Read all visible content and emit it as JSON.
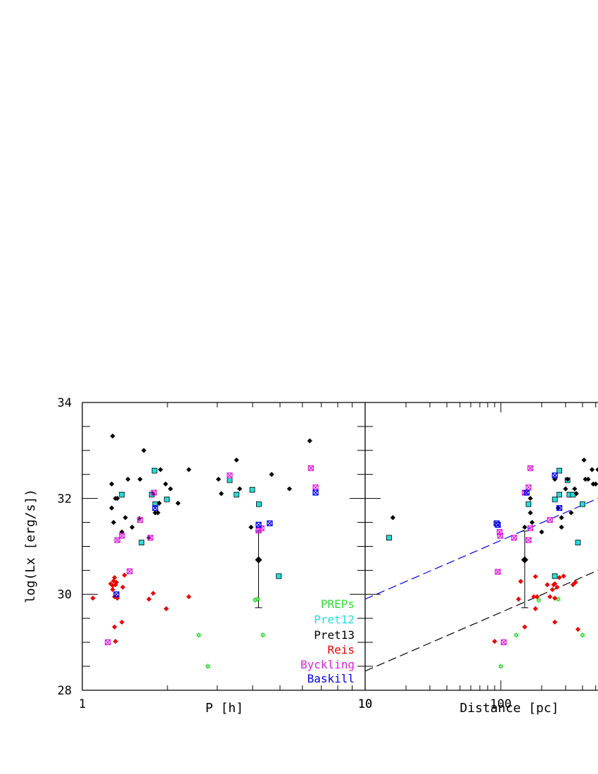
{
  "chart_data": [
    {
      "type": "scatter",
      "panel": "left",
      "xlabel": "P [h]",
      "ylabel": "log(Lx [erg/s])",
      "xscale": "log",
      "xlim": [
        1,
        10
      ],
      "ylim": [
        28,
        34
      ],
      "x_tick_labels": [
        "1",
        "10"
      ],
      "y_tick_labels": [
        "28",
        "30",
        "32",
        "34"
      ],
      "grid": false,
      "legend_position": "bottom-right",
      "series": [
        {
          "name": "PREPs",
          "color": "#33dd33",
          "marker": "star",
          "points": [
            [
              2.58,
              29.15
            ],
            [
              2.78,
              28.5
            ],
            [
              4.08,
              29.88
            ],
            [
              4.17,
              29.9
            ],
            [
              4.35,
              29.15
            ]
          ]
        },
        {
          "name": "Pret12",
          "color": "#22dddd",
          "marker": "square",
          "points": [
            [
              1.38,
              32.08
            ],
            [
              1.62,
              31.08
            ],
            [
              1.76,
              32.08
            ],
            [
              1.81,
              31.88
            ],
            [
              1.8,
              32.58
            ],
            [
              1.99,
              31.98
            ],
            [
              3.32,
              32.38
            ],
            [
              3.51,
              32.08
            ],
            [
              3.99,
              32.18
            ],
            [
              4.21,
              31.88
            ],
            [
              4.95,
              30.38
            ]
          ]
        },
        {
          "name": "Pret13",
          "color": "#000000",
          "marker": "diamond",
          "points": [
            [
              1.28,
              33.3
            ],
            [
              1.27,
              32.3
            ],
            [
              1.27,
              31.8
            ],
            [
              1.29,
              31.5
            ],
            [
              1.31,
              32.0
            ],
            [
              1.33,
              32.0
            ],
            [
              1.38,
              31.3
            ],
            [
              1.42,
              31.6
            ],
            [
              1.45,
              32.4
            ],
            [
              1.5,
              31.4
            ],
            [
              1.59,
              31.58
            ],
            [
              1.6,
              32.4
            ],
            [
              1.65,
              33.0
            ],
            [
              1.72,
              31.18
            ],
            [
              1.78,
              32.1
            ],
            [
              1.81,
              31.7
            ],
            [
              1.85,
              31.7
            ],
            [
              1.87,
              31.9
            ],
            [
              1.89,
              32.6
            ],
            [
              1.97,
              32.3
            ],
            [
              2.05,
              32.2
            ],
            [
              2.18,
              31.9
            ],
            [
              2.38,
              32.6
            ],
            [
              3.03,
              32.4
            ],
            [
              3.1,
              32.1
            ],
            [
              3.51,
              32.8
            ],
            [
              3.6,
              32.2
            ],
            [
              3.95,
              31.4
            ],
            [
              4.67,
              32.5
            ],
            [
              5.4,
              32.2
            ],
            [
              6.37,
              33.2
            ]
          ]
        },
        {
          "name": "Reis",
          "color": "#ee0000",
          "marker": "diamond",
          "points": [
            [
              1.09,
              29.92
            ],
            [
              1.26,
              30.22
            ],
            [
              1.28,
              30.18
            ],
            [
              1.29,
              30.28
            ],
            [
              1.3,
              30.35
            ],
            [
              1.31,
              30.2
            ],
            [
              1.32,
              30.25
            ],
            [
              1.28,
              30.1
            ],
            [
              1.3,
              29.95
            ],
            [
              1.33,
              29.92
            ],
            [
              1.3,
              29.32
            ],
            [
              1.31,
              29.02
            ],
            [
              1.39,
              30.15
            ],
            [
              1.41,
              30.4
            ],
            [
              1.38,
              29.42
            ],
            [
              1.72,
              29.9
            ],
            [
              1.78,
              30.02
            ],
            [
              1.98,
              29.7
            ],
            [
              2.38,
              29.95
            ]
          ]
        },
        {
          "name": "Byckling",
          "color": "#dd22dd",
          "marker": "square-x",
          "points": [
            [
              1.23,
              29.0
            ],
            [
              1.33,
              31.13
            ],
            [
              1.38,
              31.22
            ],
            [
              1.47,
              30.48
            ],
            [
              1.6,
              31.55
            ],
            [
              1.74,
              31.18
            ],
            [
              1.79,
              32.12
            ],
            [
              3.32,
              32.48
            ],
            [
              4.2,
              31.33
            ],
            [
              4.3,
              31.38
            ],
            [
              6.43,
              32.63
            ],
            [
              6.68,
              32.23
            ]
          ]
        },
        {
          "name": "Baskill",
          "color": "#0000ee",
          "marker": "square-x",
          "points": [
            [
              1.32,
              30.0
            ],
            [
              1.81,
              31.8
            ],
            [
              4.2,
              31.45
            ],
            [
              4.6,
              31.48
            ],
            [
              6.68,
              32.12
            ]
          ]
        }
      ],
      "error_bar": {
        "x": 4.2,
        "y": 30.72,
        "ylow": 29.72,
        "yhigh": 31.32
      }
    },
    {
      "type": "scatter",
      "panel": "right",
      "xlabel": "Distance [pc]",
      "xscale": "log",
      "xlim": [
        10,
        520
      ],
      "ylim": [
        28,
        34
      ],
      "x_tick_labels": [
        "10",
        "100"
      ],
      "grid": false,
      "series": [
        {
          "name": "PREPs",
          "color": "#33dd33",
          "marker": "star",
          "points": [
            [
              100,
              28.5
            ],
            [
              130,
              29.15
            ],
            [
              190,
              29.88
            ],
            [
              265,
              29.9
            ],
            [
              400,
              29.15
            ]
          ]
        },
        {
          "name": "Pret12",
          "color": "#22dddd",
          "marker": "square",
          "points": [
            [
              15,
              31.18
            ],
            [
              160,
              31.88
            ],
            [
              250,
              31.98
            ],
            [
              250,
              30.38
            ],
            [
              270,
              32.08
            ],
            [
              270,
              32.58
            ],
            [
              310,
              32.38
            ],
            [
              320,
              32.08
            ],
            [
              340,
              32.08
            ],
            [
              370,
              31.08
            ],
            [
              400,
              31.88
            ]
          ]
        },
        {
          "name": "Pret13",
          "color": "#000000",
          "marker": "diamond",
          "points": [
            [
              16,
              31.6
            ],
            [
              150,
              31.4
            ],
            [
              165,
              32.0
            ],
            [
              165,
              31.7
            ],
            [
              170,
              31.5
            ],
            [
              200,
              31.3
            ],
            [
              250,
              32.4
            ],
            [
              265,
              31.8
            ],
            [
              280,
              31.6
            ],
            [
              280,
              31.4
            ],
            [
              300,
              32.2
            ],
            [
              310,
              32.4
            ],
            [
              330,
              31.7
            ],
            [
              350,
              32.2
            ],
            [
              360,
              32.1
            ],
            [
              410,
              32.8
            ],
            [
              420,
              32.4
            ],
            [
              440,
              32.4
            ],
            [
              470,
              32.6
            ],
            [
              480,
              32.3
            ],
            [
              500,
              32.3
            ],
            [
              520,
              32.6
            ]
          ]
        },
        {
          "name": "Reis",
          "color": "#ee0000",
          "marker": "diamond",
          "points": [
            [
              90,
              29.02
            ],
            [
              140,
              30.27
            ],
            [
              135,
              29.9
            ],
            [
              150,
              29.32
            ],
            [
              175,
              29.95
            ],
            [
              180,
              30.37
            ],
            [
              180,
              29.7
            ],
            [
              185,
              29.95
            ],
            [
              220,
              30.2
            ],
            [
              230,
              29.95
            ],
            [
              240,
              30.1
            ],
            [
              245,
              30.2
            ],
            [
              250,
              29.92
            ],
            [
              250,
              30.22
            ],
            [
              250,
              29.42
            ],
            [
              260,
              30.15
            ],
            [
              270,
              30.35
            ],
            [
              290,
              30.38
            ],
            [
              340,
              30.2
            ],
            [
              355,
              30.25
            ],
            [
              370,
              29.27
            ]
          ]
        },
        {
          "name": "Byckling",
          "color": "#dd22dd",
          "marker": "square-x",
          "points": [
            [
              95,
              30.47
            ],
            [
              98,
              31.3
            ],
            [
              99,
              31.22
            ],
            [
              105,
              29.0
            ],
            [
              125,
              31.18
            ],
            [
              150,
              32.12
            ],
            [
              160,
              32.23
            ],
            [
              160,
              31.13
            ],
            [
              165,
              32.63
            ],
            [
              165,
              31.38
            ],
            [
              230,
              31.55
            ]
          ]
        },
        {
          "name": "Baskill",
          "color": "#0000ee",
          "marker": "square-x",
          "points": [
            [
              93,
              31.48
            ],
            [
              95,
              31.45
            ],
            [
              155,
              32.12
            ],
            [
              250,
              32.48
            ],
            [
              270,
              31.8
            ]
          ]
        }
      ],
      "error_bar": {
        "x": 150,
        "y": 30.72,
        "ylow": 29.72,
        "yhigh": 31.32
      },
      "lines": [
        {
          "color": "#0000ee",
          "style": "dashed",
          "points": [
            [
              10,
              29.9
            ],
            [
              520,
              32.0
            ]
          ]
        },
        {
          "color": "#000000",
          "style": "dashed",
          "points": [
            [
              10,
              28.4
            ],
            [
              520,
              30.5
            ]
          ]
        }
      ]
    }
  ]
}
